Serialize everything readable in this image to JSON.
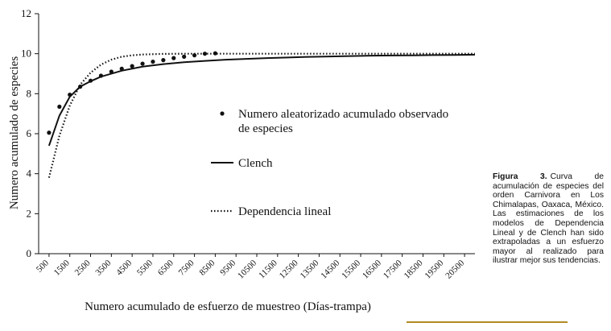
{
  "chart_data": {
    "type": "line",
    "xlabel": "Numero acumulado de esfuerzo de muestreo (Días-trampa)",
    "ylabel": "Numero acumulado de especies",
    "ylim": [
      0,
      12
    ],
    "yticks": [
      "0",
      "2",
      "4",
      "6",
      "8",
      "10",
      "12"
    ],
    "xticks": [
      "500",
      "1500",
      "2500",
      "3500",
      "4500",
      "5500",
      "6500",
      "7500",
      "8500",
      "9500",
      "10500",
      "11500",
      "12500",
      "13500",
      "14500",
      "15500",
      "16500",
      "17500",
      "18500",
      "19500",
      "20500"
    ],
    "xlim": [
      0,
      21000
    ],
    "series": [
      {
        "name": "Numero aleatorizado acumulado observado de especies",
        "style": "markers",
        "x": [
          500,
          1000,
          1500,
          2000,
          2500,
          3000,
          3500,
          4000,
          4500,
          5000,
          5500,
          6000,
          6500,
          7000,
          7500,
          8000,
          8500
        ],
        "y": [
          6.05,
          7.35,
          7.95,
          8.35,
          8.65,
          8.9,
          9.1,
          9.25,
          9.38,
          9.5,
          9.6,
          9.68,
          9.78,
          9.85,
          9.92,
          10.0,
          10.02
        ]
      },
      {
        "name": "Clench",
        "style": "solid",
        "x": [
          500,
          1000,
          1500,
          2000,
          2500,
          3000,
          4000,
          5000,
          6000,
          7000,
          8000,
          9000,
          10000,
          11000,
          12000,
          13000,
          14000,
          15000,
          16000,
          17000,
          18000,
          19000,
          20000,
          21000
        ],
        "y": [
          5.4,
          6.9,
          7.85,
          8.35,
          8.62,
          8.85,
          9.15,
          9.35,
          9.48,
          9.57,
          9.64,
          9.7,
          9.74,
          9.78,
          9.81,
          9.84,
          9.86,
          9.88,
          9.9,
          9.91,
          9.92,
          9.93,
          9.94,
          9.95
        ]
      },
      {
        "name": "Dependencia lineal",
        "style": "dotted",
        "x": [
          500,
          1000,
          1500,
          2000,
          2500,
          3000,
          3500,
          4000,
          4500,
          5000,
          6000,
          7000,
          8000,
          10000,
          12000,
          14000,
          16000,
          18000,
          20000,
          21000
        ],
        "y": [
          3.8,
          5.9,
          7.4,
          8.45,
          9.05,
          9.45,
          9.7,
          9.85,
          9.92,
          9.96,
          9.99,
          10.0,
          10.0,
          10.0,
          10.0,
          10.0,
          10.0,
          10.0,
          10.0,
          10.0
        ]
      }
    ],
    "legend": {
      "position": "center-right",
      "entries": [
        {
          "line1": "Numero aleatorizado acumulado observado",
          "line2": "de especies"
        },
        {
          "line1": "Clench"
        },
        {
          "line1": "Dependencia lineal"
        }
      ]
    }
  },
  "caption": {
    "label": "Figura 3.",
    "text": "Curva de acumulación de especies del orden Carnivora en Los Chimalapas, Oaxaca, México. Las estimaciones de los modelos de Dependencia Lineal y de Clench han sido extrapoladas a un esfuerzo mayor al realizado para ilustrar mejor sus tendencias."
  },
  "colors": {
    "ink": "#111111",
    "underline": "#b08a24"
  }
}
